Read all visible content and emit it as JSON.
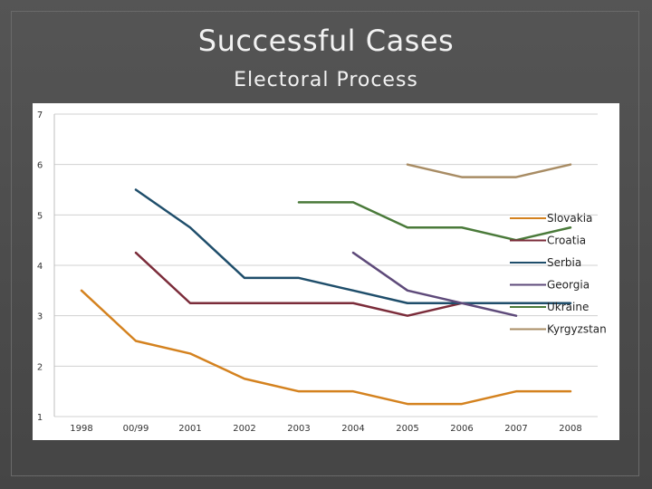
{
  "slide": {
    "title": "Successful Cases",
    "subtitle": "Electoral Process"
  },
  "chart_data": {
    "type": "line",
    "title": "",
    "xlabel": "",
    "ylabel": "",
    "categories": [
      "1998",
      "00/99",
      "2001",
      "2002",
      "2003",
      "2004",
      "2005",
      "2006",
      "2007",
      "2008"
    ],
    "ylim": [
      1,
      7
    ],
    "yticks": [
      7,
      6,
      5,
      4,
      3,
      2,
      1
    ],
    "grid": true,
    "legend_position": "right",
    "series": [
      {
        "name": "Slovakia",
        "color": "#d4821f",
        "values": [
          3.5,
          2.5,
          2.25,
          1.75,
          1.5,
          1.5,
          1.25,
          1.25,
          1.5,
          1.5
        ]
      },
      {
        "name": "Croatia",
        "color": "#7b2c3a",
        "values": [
          null,
          4.25,
          3.25,
          3.25,
          3.25,
          3.25,
          3.0,
          3.25,
          null,
          null
        ]
      },
      {
        "name": "Serbia",
        "color": "#1f4e6b",
        "values": [
          null,
          5.5,
          4.75,
          3.75,
          3.75,
          3.5,
          3.25,
          3.25,
          3.25,
          3.25
        ]
      },
      {
        "name": "Georgia",
        "color": "#5e4a7a",
        "values": [
          null,
          null,
          null,
          null,
          null,
          4.25,
          3.5,
          3.25,
          3.0,
          null
        ]
      },
      {
        "name": "Ukraine",
        "color": "#4a7a3a",
        "values": [
          null,
          null,
          null,
          null,
          5.25,
          5.25,
          4.75,
          4.75,
          4.5,
          4.75
        ]
      },
      {
        "name": "Kyrgyzstan",
        "color": "#a88c64",
        "values": [
          null,
          null,
          null,
          null,
          null,
          null,
          6.0,
          5.75,
          5.75,
          6.0
        ]
      }
    ]
  }
}
